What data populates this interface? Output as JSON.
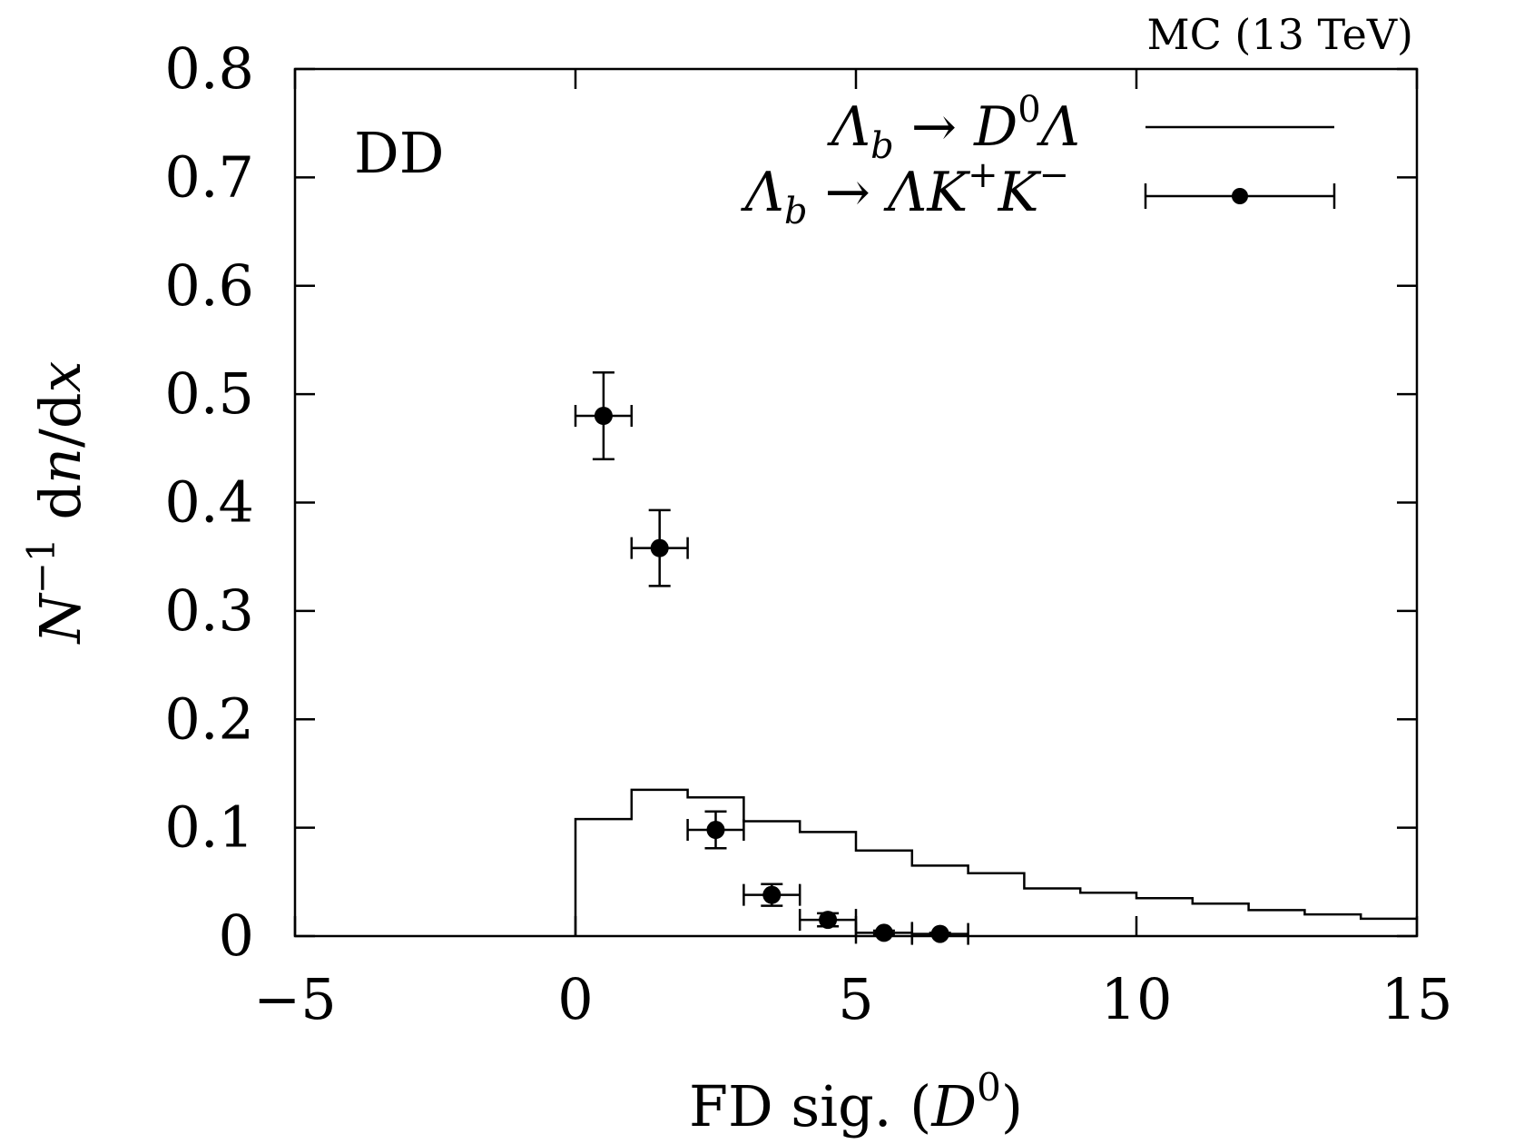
{
  "chart_data": {
    "type": "line",
    "title": "",
    "corner_label": "MC (13 TeV)",
    "inner_label": "DD",
    "xlabel": {
      "text": "FD sig. (",
      "symbol": "D",
      "sup": "0",
      "close": ")"
    },
    "ylabel": {
      "prefix": "N",
      "sup": "−1",
      "middle": " d",
      "n": "n",
      "slash": "/d",
      "x": "x"
    },
    "xlim": [
      -5,
      15
    ],
    "ylim": [
      0,
      0.8
    ],
    "xticks": [
      -5,
      0,
      5,
      10,
      15
    ],
    "yticks": [
      0,
      0.1,
      0.2,
      0.3,
      0.4,
      0.5,
      0.6,
      0.7,
      0.8
    ],
    "xtick_labels": [
      "−5",
      "0",
      "5",
      "10",
      "15"
    ],
    "ytick_labels": [
      "0",
      "0.1",
      "0.2",
      "0.3",
      "0.4",
      "0.5",
      "0.6",
      "0.7",
      "0.8"
    ],
    "grid": false,
    "legend": "top-right",
    "series": [
      {
        "name": "Λb → D0Λ",
        "legend_parts": {
          "lam": "Λ",
          "sub": "b",
          "arrow": " → ",
          "d": "D",
          "sup": "0",
          "lam2": "Λ"
        },
        "style": "histogram",
        "bin_edges": [
          0,
          1,
          2,
          3,
          4,
          5,
          6,
          7,
          8,
          9,
          10,
          11,
          12,
          13,
          14,
          15
        ],
        "values": [
          0.108,
          0.135,
          0.128,
          0.106,
          0.096,
          0.079,
          0.065,
          0.058,
          0.044,
          0.04,
          0.035,
          0.03,
          0.024,
          0.02,
          0.016
        ]
      },
      {
        "name": "Λb → ΛK+K−",
        "legend_parts": {
          "lam": "Λ",
          "sub": "b",
          "arrow": " → ",
          "lam2": "Λ",
          "k1": "K",
          "sup1": "+",
          "k2": "K",
          "sup2": "−"
        },
        "style": "points-with-errors",
        "x": [
          0.5,
          1.5,
          2.5,
          3.5,
          4.5,
          5.5,
          6.5
        ],
        "xerr": [
          0.5,
          0.5,
          0.5,
          0.5,
          0.5,
          0.5,
          0.5
        ],
        "y": [
          0.48,
          0.358,
          0.098,
          0.038,
          0.015,
          0.003,
          0.002
        ],
        "yerr": [
          0.04,
          0.035,
          0.017,
          0.01,
          0.006,
          0.002,
          0.001
        ]
      }
    ]
  }
}
